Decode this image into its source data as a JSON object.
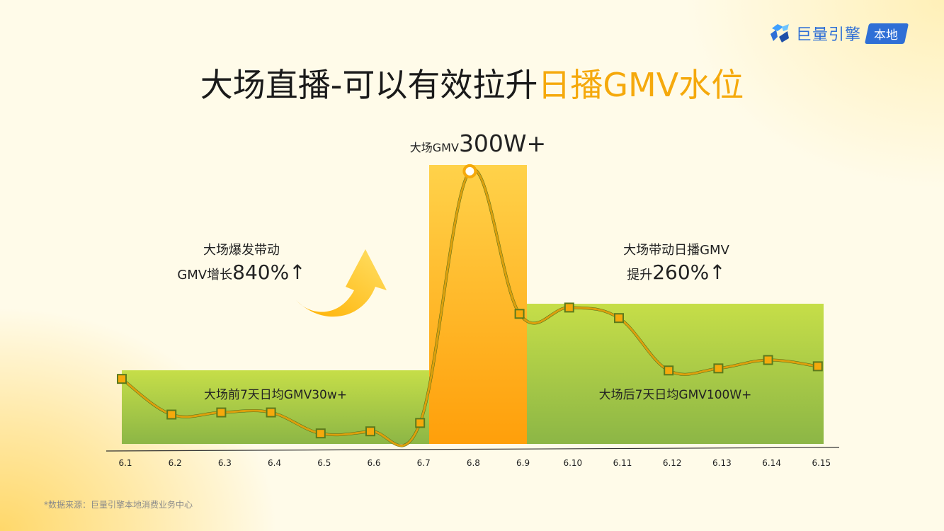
{
  "brand": {
    "name": "巨量引擎",
    "badge": "本地",
    "icon": "brand-logo-icon",
    "color": "#2f6fd6"
  },
  "title": {
    "main": "大场直播-可以有效拉升",
    "highlight": "日播GMV水位",
    "highlight_color": "#f5a90c"
  },
  "annotations": {
    "peak": {
      "prefix": "大场GMV",
      "value": "300W+"
    },
    "left": {
      "line1": "大场爆发带动",
      "line2_prefix": "GMV增长",
      "line2_value": "840%",
      "arrow": "↑",
      "icon": "curved-up-arrow-icon"
    },
    "right": {
      "line1": "大场带动日播GMV",
      "line2_prefix": "提升",
      "line2_value": "260%",
      "arrow": "↑"
    }
  },
  "bands": {
    "before": {
      "label": "大场前7天日均GMV30w+",
      "color": "#a9cc3e"
    },
    "peak": {
      "color": "#ffb21a"
    },
    "after": {
      "label": "大场后7天日均GMV100W+",
      "color": "#a9cc3e"
    }
  },
  "footnote": "*数据来源：巨量引擎本地消费业务中心",
  "chart_data": {
    "type": "line",
    "x": [
      "6.1",
      "6.2",
      "6.3",
      "6.4",
      "6.5",
      "6.6",
      "6.7",
      "6.8",
      "6.9",
      "6.10",
      "6.11",
      "6.12",
      "6.13",
      "6.14",
      "6.15"
    ],
    "values": [
      31,
      14,
      15,
      15,
      5,
      6,
      10,
      130,
      62,
      65,
      60,
      35,
      36,
      40,
      37
    ],
    "ylim": [
      0,
      135
    ],
    "note": "relative values read off the plot; no y-axis scale is printed",
    "line_color": "#f5a90c",
    "marker_color": "#f5a90c"
  }
}
